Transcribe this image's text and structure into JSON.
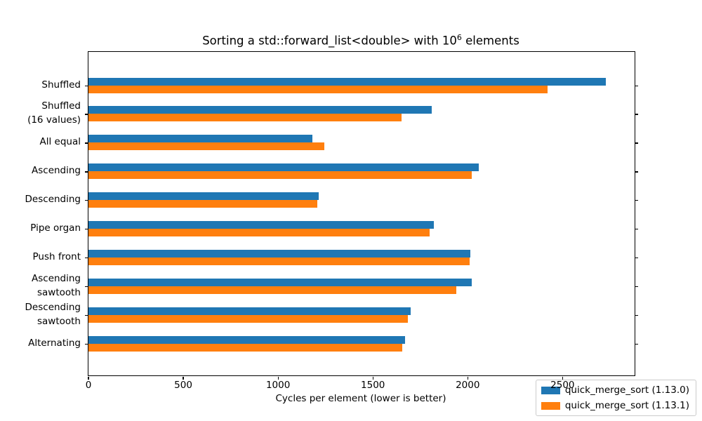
{
  "title": {
    "prefix": "Sorting a std::forward_list<double> with 10",
    "superscript": "6",
    "suffix": " elements"
  },
  "chart_data": {
    "type": "bar",
    "orientation": "horizontal",
    "title": "Sorting a std::forward_list<double> with 10^6 elements",
    "xlabel": "Cycles per element (lower is better)",
    "ylabel": "",
    "xlim": [
      0,
      2880
    ],
    "xticks": [
      0,
      500,
      1000,
      1500,
      2000,
      2500
    ],
    "grid": false,
    "legend_position": "lower right",
    "categories": [
      "Shuffled",
      "Shuffled\n(16 values)",
      "All equal",
      "Ascending",
      "Descending",
      "Pipe organ",
      "Push front",
      "Ascending\nsawtooth",
      "Descending\nsawtooth",
      "Alternating"
    ],
    "series": [
      {
        "name": "quick_merge_sort (1.13.0)",
        "color": "#1f77b4",
        "values": [
          2730,
          1810,
          1180,
          2060,
          1215,
          1820,
          2015,
          2020,
          1700,
          1670
        ]
      },
      {
        "name": "quick_merge_sort (1.13.1)",
        "color": "#ff7f0e",
        "values": [
          2420,
          1650,
          1245,
          2020,
          1205,
          1800,
          2010,
          1940,
          1685,
          1655
        ]
      }
    ]
  }
}
